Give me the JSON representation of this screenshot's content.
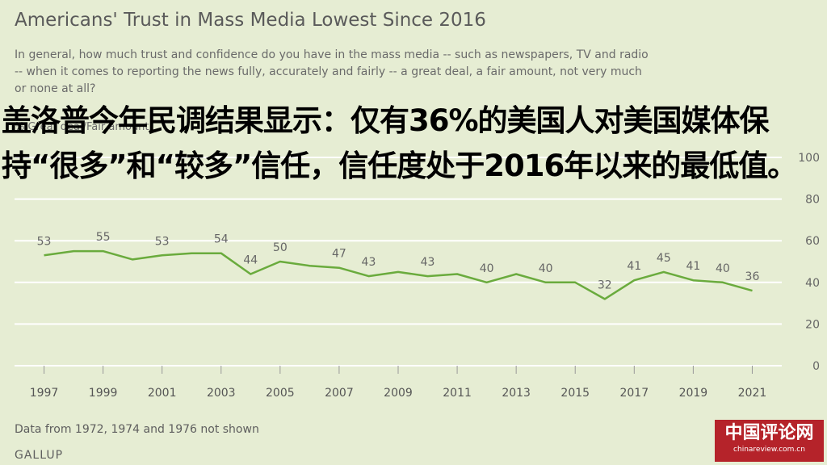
{
  "title": "Americans' Trust in Mass Media Lowest Since 2016",
  "subtitle": "In general, how much trust and confidence do you have in the mass media -- such as newspapers, TV and radio -- when it comes to reporting the news fully, accurately and fairly -- a great deal, a fair amount, not very much or none at all?",
  "series_label": "% Great deal/Fair amount",
  "overlay_text": "盖洛普今年民调结果显示：仅有36%的美国人对美国媒体保持“很多”和“较多”信任，信任度处于2016年以来的最低值。",
  "note": "Data from 1972, 1974 and 1976 not shown",
  "source": "GALLUP",
  "watermark": {
    "name": "中国评论网",
    "url": "chinareview.com.cn"
  },
  "colors": {
    "line": "#6aab3d",
    "background": "#e6edd3",
    "grid": "#ffffff",
    "watermark": "#b5232a"
  },
  "chart_data": {
    "type": "line",
    "x": [
      1997,
      1998,
      1999,
      2000,
      2001,
      2002,
      2003,
      2004,
      2005,
      2006,
      2007,
      2008,
      2009,
      2010,
      2011,
      2012,
      2013,
      2014,
      2015,
      2016,
      2017,
      2018,
      2019,
      2020,
      2021
    ],
    "series": [
      {
        "name": "% Great deal/Fair amount",
        "values": [
          53,
          55,
          55,
          51,
          53,
          54,
          54,
          44,
          50,
          48,
          47,
          43,
          45,
          43,
          44,
          40,
          44,
          40,
          40,
          32,
          41,
          45,
          41,
          40,
          36
        ]
      }
    ],
    "data_labels": [
      {
        "x": 1997,
        "y": 53
      },
      {
        "x": 1999,
        "y": 55
      },
      {
        "x": 2001,
        "y": 53
      },
      {
        "x": 2003,
        "y": 54
      },
      {
        "x": 2004,
        "y": 44
      },
      {
        "x": 2005,
        "y": 50
      },
      {
        "x": 2007,
        "y": 47
      },
      {
        "x": 2008,
        "y": 43
      },
      {
        "x": 2010,
        "y": 43
      },
      {
        "x": 2012,
        "y": 40
      },
      {
        "x": 2014,
        "y": 40
      },
      {
        "x": 2016,
        "y": 32
      },
      {
        "x": 2017,
        "y": 41
      },
      {
        "x": 2018,
        "y": 45
      },
      {
        "x": 2019,
        "y": 41
      },
      {
        "x": 2020,
        "y": 40
      },
      {
        "x": 2021,
        "y": 36
      }
    ],
    "x_ticks": [
      "1997",
      "1999",
      "2001",
      "2003",
      "2005",
      "2007",
      "2009",
      "2011",
      "2013",
      "2015",
      "2017",
      "2019",
      "2021"
    ],
    "y_ticks": [
      0,
      20,
      40,
      60,
      80,
      100
    ],
    "ylim": [
      0,
      100
    ],
    "grid": true
  }
}
